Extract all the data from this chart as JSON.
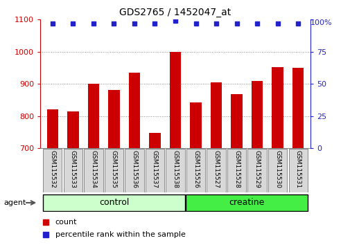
{
  "title": "GDS2765 / 1452047_at",
  "samples": [
    "GSM115532",
    "GSM115533",
    "GSM115534",
    "GSM115535",
    "GSM115536",
    "GSM115537",
    "GSM115538",
    "GSM115526",
    "GSM115527",
    "GSM115528",
    "GSM115529",
    "GSM115530",
    "GSM115531"
  ],
  "counts": [
    820,
    815,
    900,
    882,
    935,
    748,
    1000,
    843,
    905,
    868,
    910,
    952,
    950
  ],
  "percentiles": [
    97,
    97,
    97,
    97,
    97,
    97,
    99,
    97,
    97,
    97,
    97,
    97,
    97
  ],
  "groups": [
    "control",
    "control",
    "control",
    "control",
    "control",
    "control",
    "control",
    "creatine",
    "creatine",
    "creatine",
    "creatine",
    "creatine",
    "creatine"
  ],
  "bar_color": "#cc0000",
  "dot_color": "#2222cc",
  "ylim_left": [
    700,
    1100
  ],
  "ylim_right": [
    0,
    100
  ],
  "yticks_left": [
    700,
    800,
    900,
    1000,
    1100
  ],
  "yticks_right": [
    0,
    25,
    50,
    75,
    100
  ],
  "control_color": "#ccffcc",
  "creatine_color": "#44ee44",
  "group_border_color": "#000000",
  "agent_label": "agent",
  "legend_count_label": "count",
  "legend_pct_label": "percentile rank within the sample",
  "background_color": "#ffffff",
  "grid_color": "#888888",
  "label_box_color": "#d8d8d8",
  "label_box_edge": "#888888",
  "right_top_label": "100%"
}
